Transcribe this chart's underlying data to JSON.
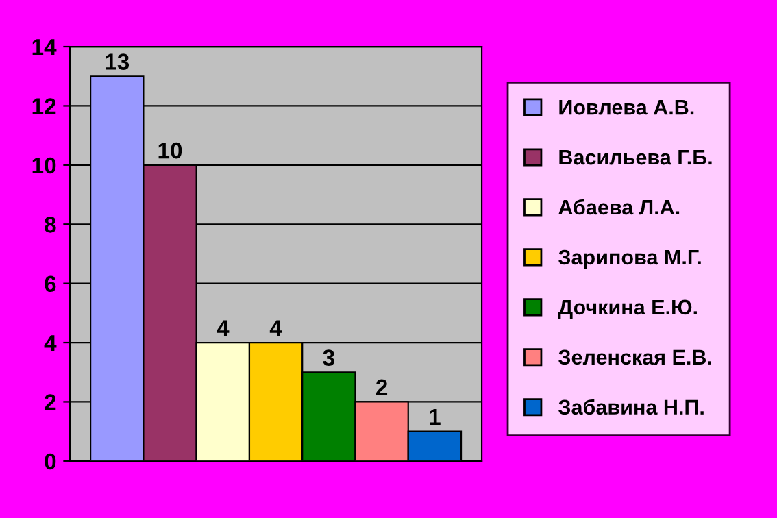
{
  "chart_data": {
    "type": "bar",
    "categories": [
      null
    ],
    "series": [
      {
        "name": "Иовлева А.В.",
        "color": "#9999ff",
        "values": [
          13
        ]
      },
      {
        "name": "Васильева Г.Б.",
        "color": "#993366",
        "values": [
          10
        ]
      },
      {
        "name": "Абаева Л.А.",
        "color": "#ffffcc",
        "values": [
          4
        ]
      },
      {
        "name": "Зарипова М.Г.",
        "color": "#ffcc00",
        "values": [
          4
        ]
      },
      {
        "name": "Дочкина Е.Ю.",
        "color": "#008000",
        "values": [
          3
        ]
      },
      {
        "name": "Зеленская Е.В.",
        "color": "#ff8080",
        "values": [
          2
        ]
      },
      {
        "name": "Забавина Н.П.",
        "color": "#0066cc",
        "values": [
          1
        ]
      }
    ],
    "ylim": [
      0,
      14
    ],
    "yticks": [
      0,
      2,
      4,
      6,
      8,
      10,
      12,
      14
    ],
    "grid": "y",
    "legend": "right",
    "data_labels": true
  }
}
